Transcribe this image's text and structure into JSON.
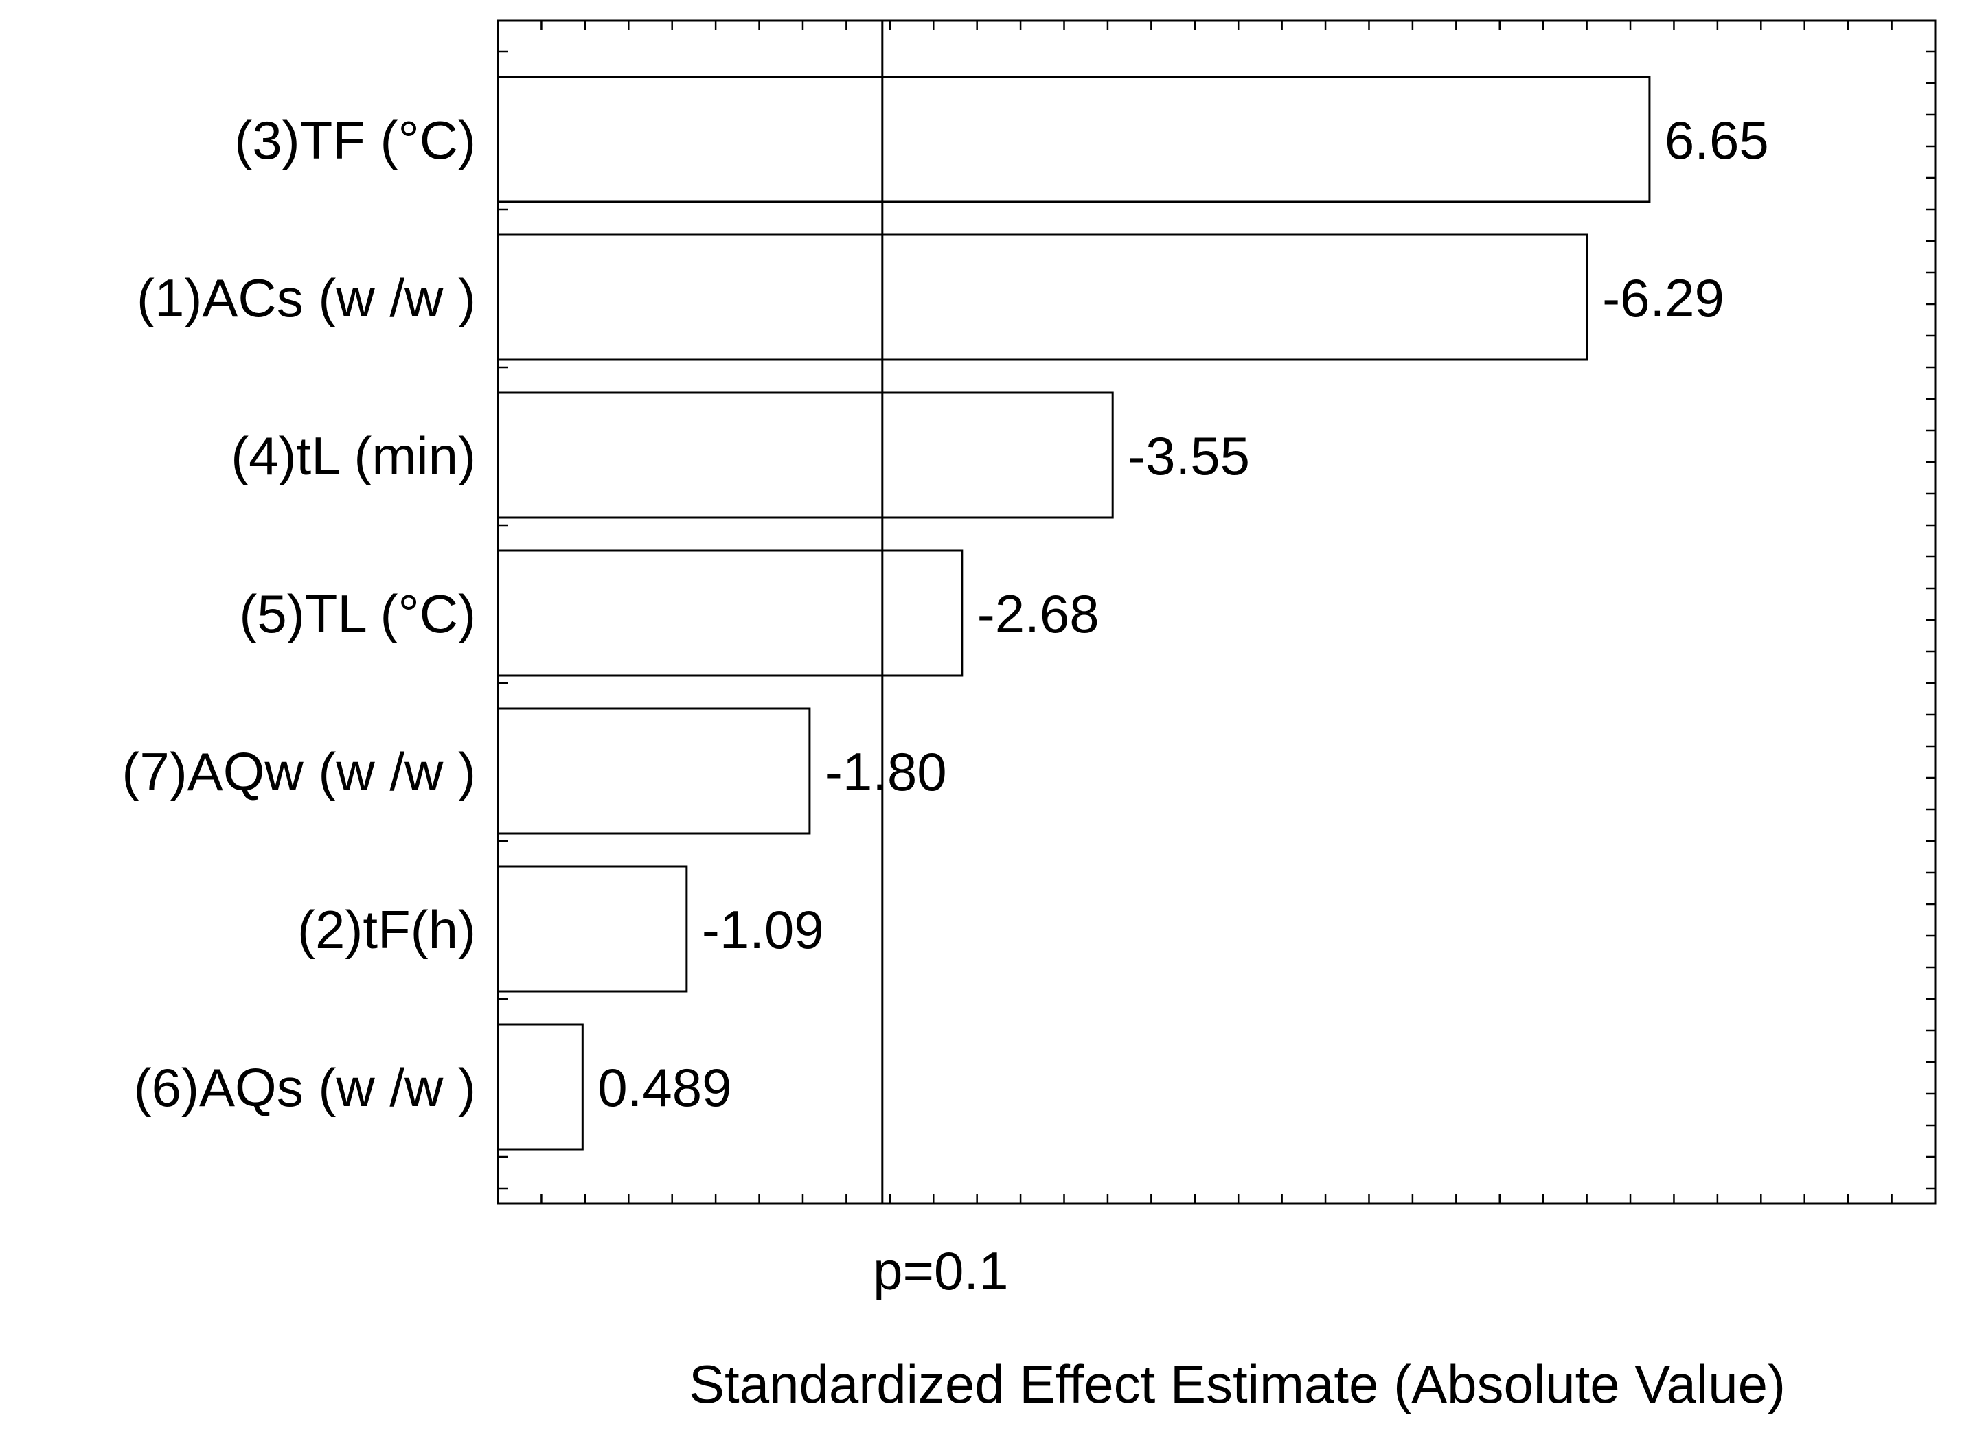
{
  "chart_data": {
    "type": "bar",
    "orientation": "horizontal",
    "categories": [
      "(3)TF (°C)",
      "(1)ACs (w /w )",
      "(4)tL (min)",
      "(5)TL (°C)",
      "(7)AQw  (w /w )",
      "(2)tF(h)",
      "(6)AQs (w /w )"
    ],
    "values": [
      6.65,
      -6.29,
      -3.55,
      -2.68,
      -1.8,
      -1.09,
      0.489
    ],
    "value_labels": [
      "6.65",
      "-6.29",
      "-3.55",
      "-2.68",
      "-1.80",
      "-1.09",
      "0.489"
    ],
    "xlim": [
      0,
      8.3
    ],
    "reference_line": {
      "value": 2.22,
      "label": "p=0.1"
    },
    "xlabel": "Standardized Effect Estimate (Absolute Value)",
    "ylabel": "",
    "title": "",
    "grid": false,
    "bar_fill": "#ffffff",
    "bar_stroke": "#000000"
  }
}
